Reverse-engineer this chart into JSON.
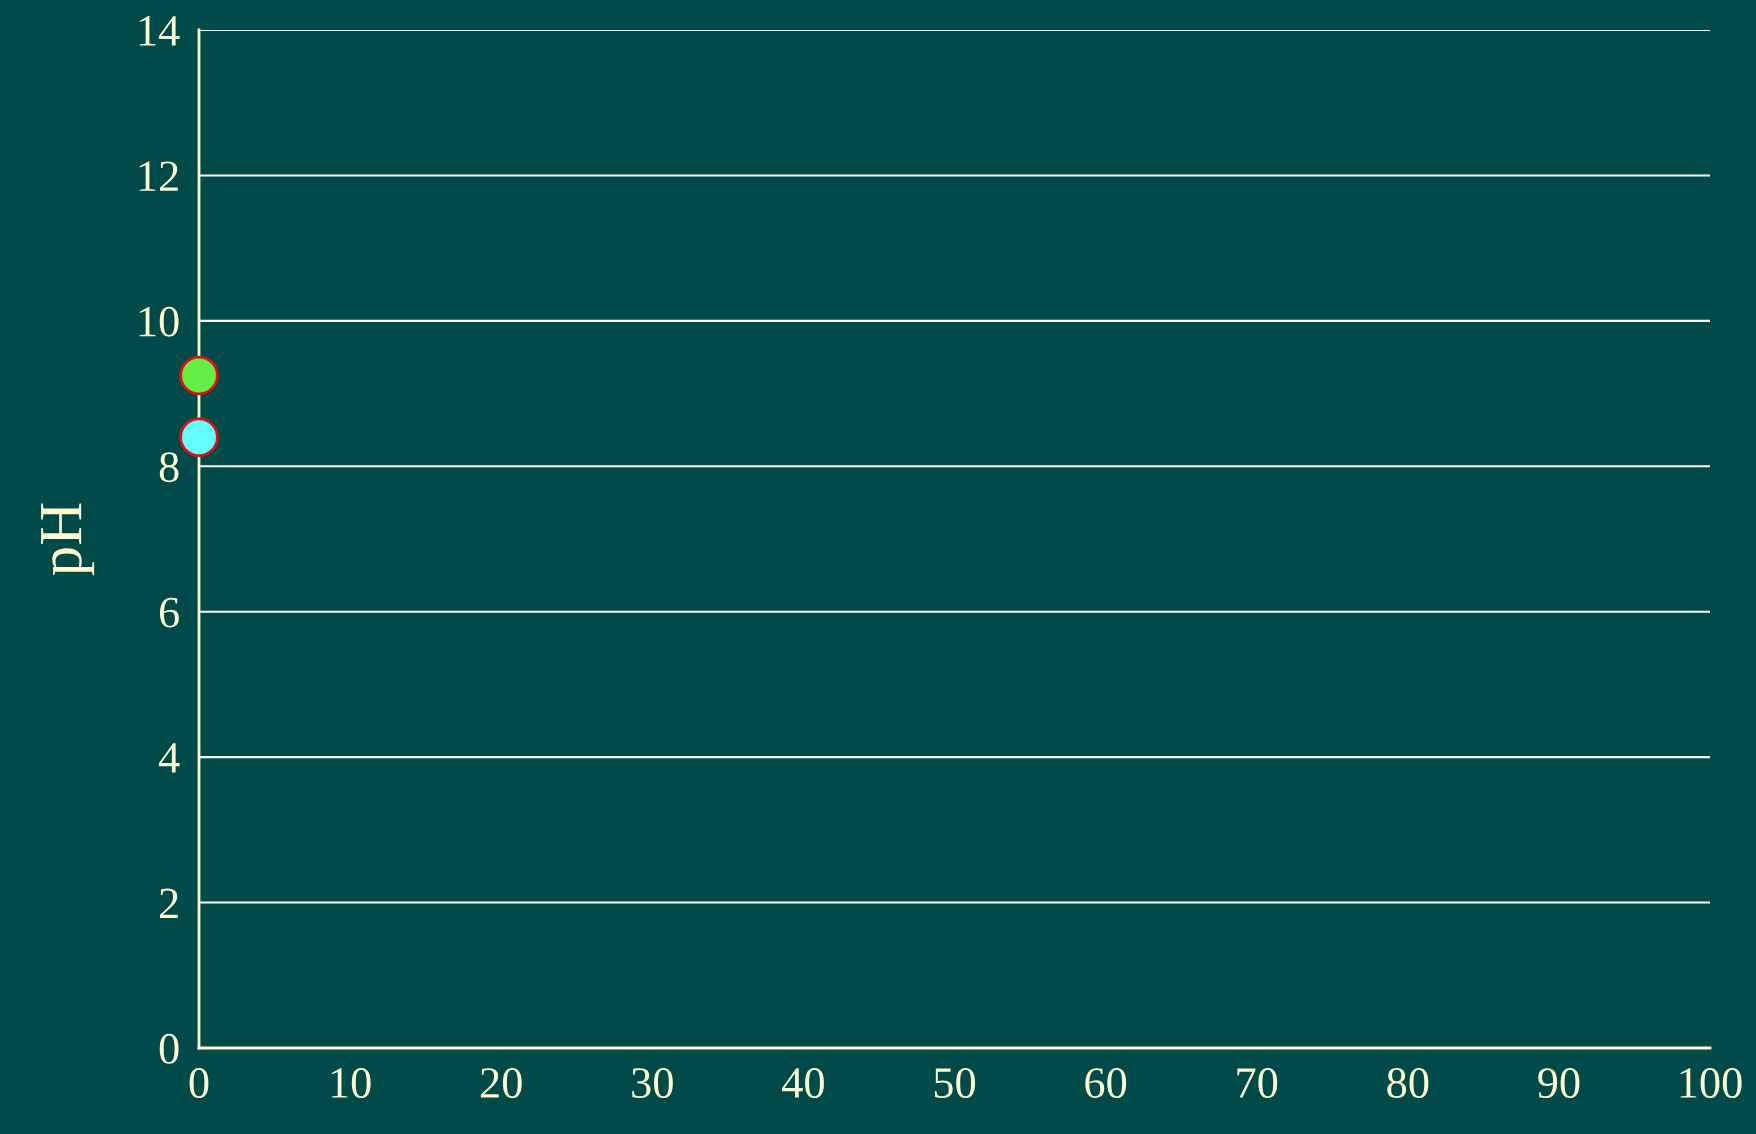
{
  "chart_data": {
    "type": "scatter",
    "ylabel": "pH",
    "series": [
      {
        "color": "#66ee44",
        "x": [
          0
        ],
        "values": [
          9.25
        ]
      },
      {
        "color": "#66ffff",
        "x": [
          0
        ],
        "values": [
          8.4
        ]
      }
    ],
    "xlim": [
      0,
      100
    ],
    "xticks": [
      0,
      10,
      20,
      30,
      40,
      50,
      60,
      70,
      80,
      90,
      100
    ],
    "ylim": [
      0,
      14
    ],
    "yticks": [
      0,
      2,
      4,
      6,
      8,
      10,
      12,
      14
    ],
    "grid": "y",
    "marker": "circle"
  }
}
